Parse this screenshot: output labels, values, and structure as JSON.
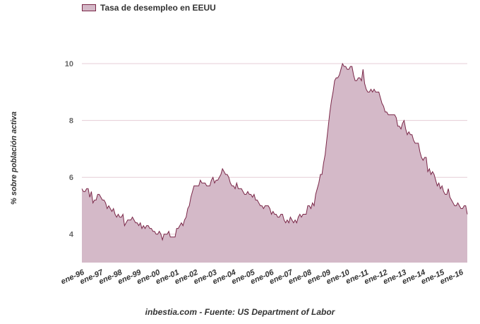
{
  "chart_data": {
    "type": "area",
    "legend": "Tasa de desempleo en EEUU",
    "legend_position": "top-left",
    "ylabel": "% sobre población activa",
    "source": "inbestia.com - Fuente: US Department of Labor",
    "ylim": [
      3,
      10.5
    ],
    "y_ticks": [
      4,
      6,
      8,
      10
    ],
    "x_tick_labels": [
      "ene-96",
      "ene-97",
      "ene-98",
      "ene-99",
      "ene-00",
      "ene-01",
      "ene-02",
      "ene-03",
      "ene-04",
      "ene-05",
      "ene-06",
      "ene-07",
      "ene-08",
      "ene-09",
      "ene-10",
      "ene-11",
      "ene-12",
      "ene-13",
      "ene-14",
      "ene-15",
      "ene-16"
    ],
    "x_start": "1996-01",
    "x_end": "2016-05",
    "grid": "horizontal",
    "colors": {
      "fill": "#d4b9c8",
      "line": "#7a2748",
      "grid": "#e6cdd6"
    },
    "series": [
      {
        "name": "Tasa de desempleo en EEUU",
        "values": [
          5.6,
          5.5,
          5.5,
          5.6,
          5.6,
          5.3,
          5.5,
          5.1,
          5.2,
          5.2,
          5.4,
          5.4,
          5.3,
          5.2,
          5.2,
          5.1,
          4.9,
          5.0,
          4.9,
          4.8,
          4.9,
          4.7,
          4.6,
          4.7,
          4.6,
          4.6,
          4.7,
          4.3,
          4.4,
          4.5,
          4.5,
          4.5,
          4.6,
          4.5,
          4.4,
          4.4,
          4.3,
          4.4,
          4.2,
          4.3,
          4.2,
          4.3,
          4.3,
          4.2,
          4.2,
          4.1,
          4.1,
          4.0,
          4.0,
          4.1,
          4.0,
          3.8,
          4.0,
          4.0,
          4.0,
          4.1,
          3.9,
          3.9,
          3.9,
          3.9,
          4.2,
          4.2,
          4.3,
          4.4,
          4.3,
          4.5,
          4.6,
          4.9,
          5.0,
          5.3,
          5.5,
          5.7,
          5.7,
          5.7,
          5.7,
          5.9,
          5.8,
          5.8,
          5.8,
          5.7,
          5.7,
          5.7,
          5.9,
          6.0,
          5.8,
          5.9,
          5.9,
          6.0,
          6.1,
          6.3,
          6.2,
          6.1,
          6.1,
          6.0,
          5.8,
          5.7,
          5.7,
          5.6,
          5.8,
          5.6,
          5.6,
          5.6,
          5.5,
          5.4,
          5.4,
          5.5,
          5.4,
          5.4,
          5.3,
          5.4,
          5.2,
          5.2,
          5.1,
          5.0,
          5.0,
          4.9,
          5.0,
          5.0,
          5.0,
          4.9,
          4.7,
          4.8,
          4.7,
          4.7,
          4.6,
          4.6,
          4.7,
          4.7,
          4.5,
          4.4,
          4.5,
          4.4,
          4.6,
          4.5,
          4.4,
          4.5,
          4.4,
          4.6,
          4.7,
          4.6,
          4.7,
          4.7,
          4.7,
          5.0,
          5.0,
          4.9,
          5.1,
          5.0,
          5.4,
          5.6,
          5.8,
          6.1,
          6.1,
          6.5,
          6.8,
          7.3,
          7.8,
          8.3,
          8.7,
          9.0,
          9.4,
          9.5,
          9.5,
          9.6,
          9.8,
          10.0,
          9.9,
          9.9,
          9.8,
          9.8,
          9.9,
          9.9,
          9.6,
          9.4,
          9.4,
          9.5,
          9.5,
          9.4,
          9.8,
          9.3,
          9.1,
          9.0,
          9.0,
          9.1,
          9.0,
          9.1,
          9.0,
          9.0,
          9.0,
          8.8,
          8.6,
          8.5,
          8.3,
          8.3,
          8.2,
          8.2,
          8.2,
          8.2,
          8.2,
          8.1,
          7.8,
          7.8,
          7.7,
          7.9,
          8.0,
          7.7,
          7.5,
          7.6,
          7.5,
          7.5,
          7.3,
          7.2,
          7.2,
          7.2,
          6.9,
          6.7,
          6.6,
          6.7,
          6.7,
          6.2,
          6.3,
          6.1,
          6.2,
          6.1,
          5.9,
          5.7,
          5.8,
          5.6,
          5.7,
          5.5,
          5.4,
          5.4,
          5.6,
          5.3,
          5.2,
          5.1,
          5.0,
          5.0,
          5.1,
          5.0,
          4.9,
          4.9,
          5.0,
          5.0,
          4.7
        ]
      }
    ]
  }
}
